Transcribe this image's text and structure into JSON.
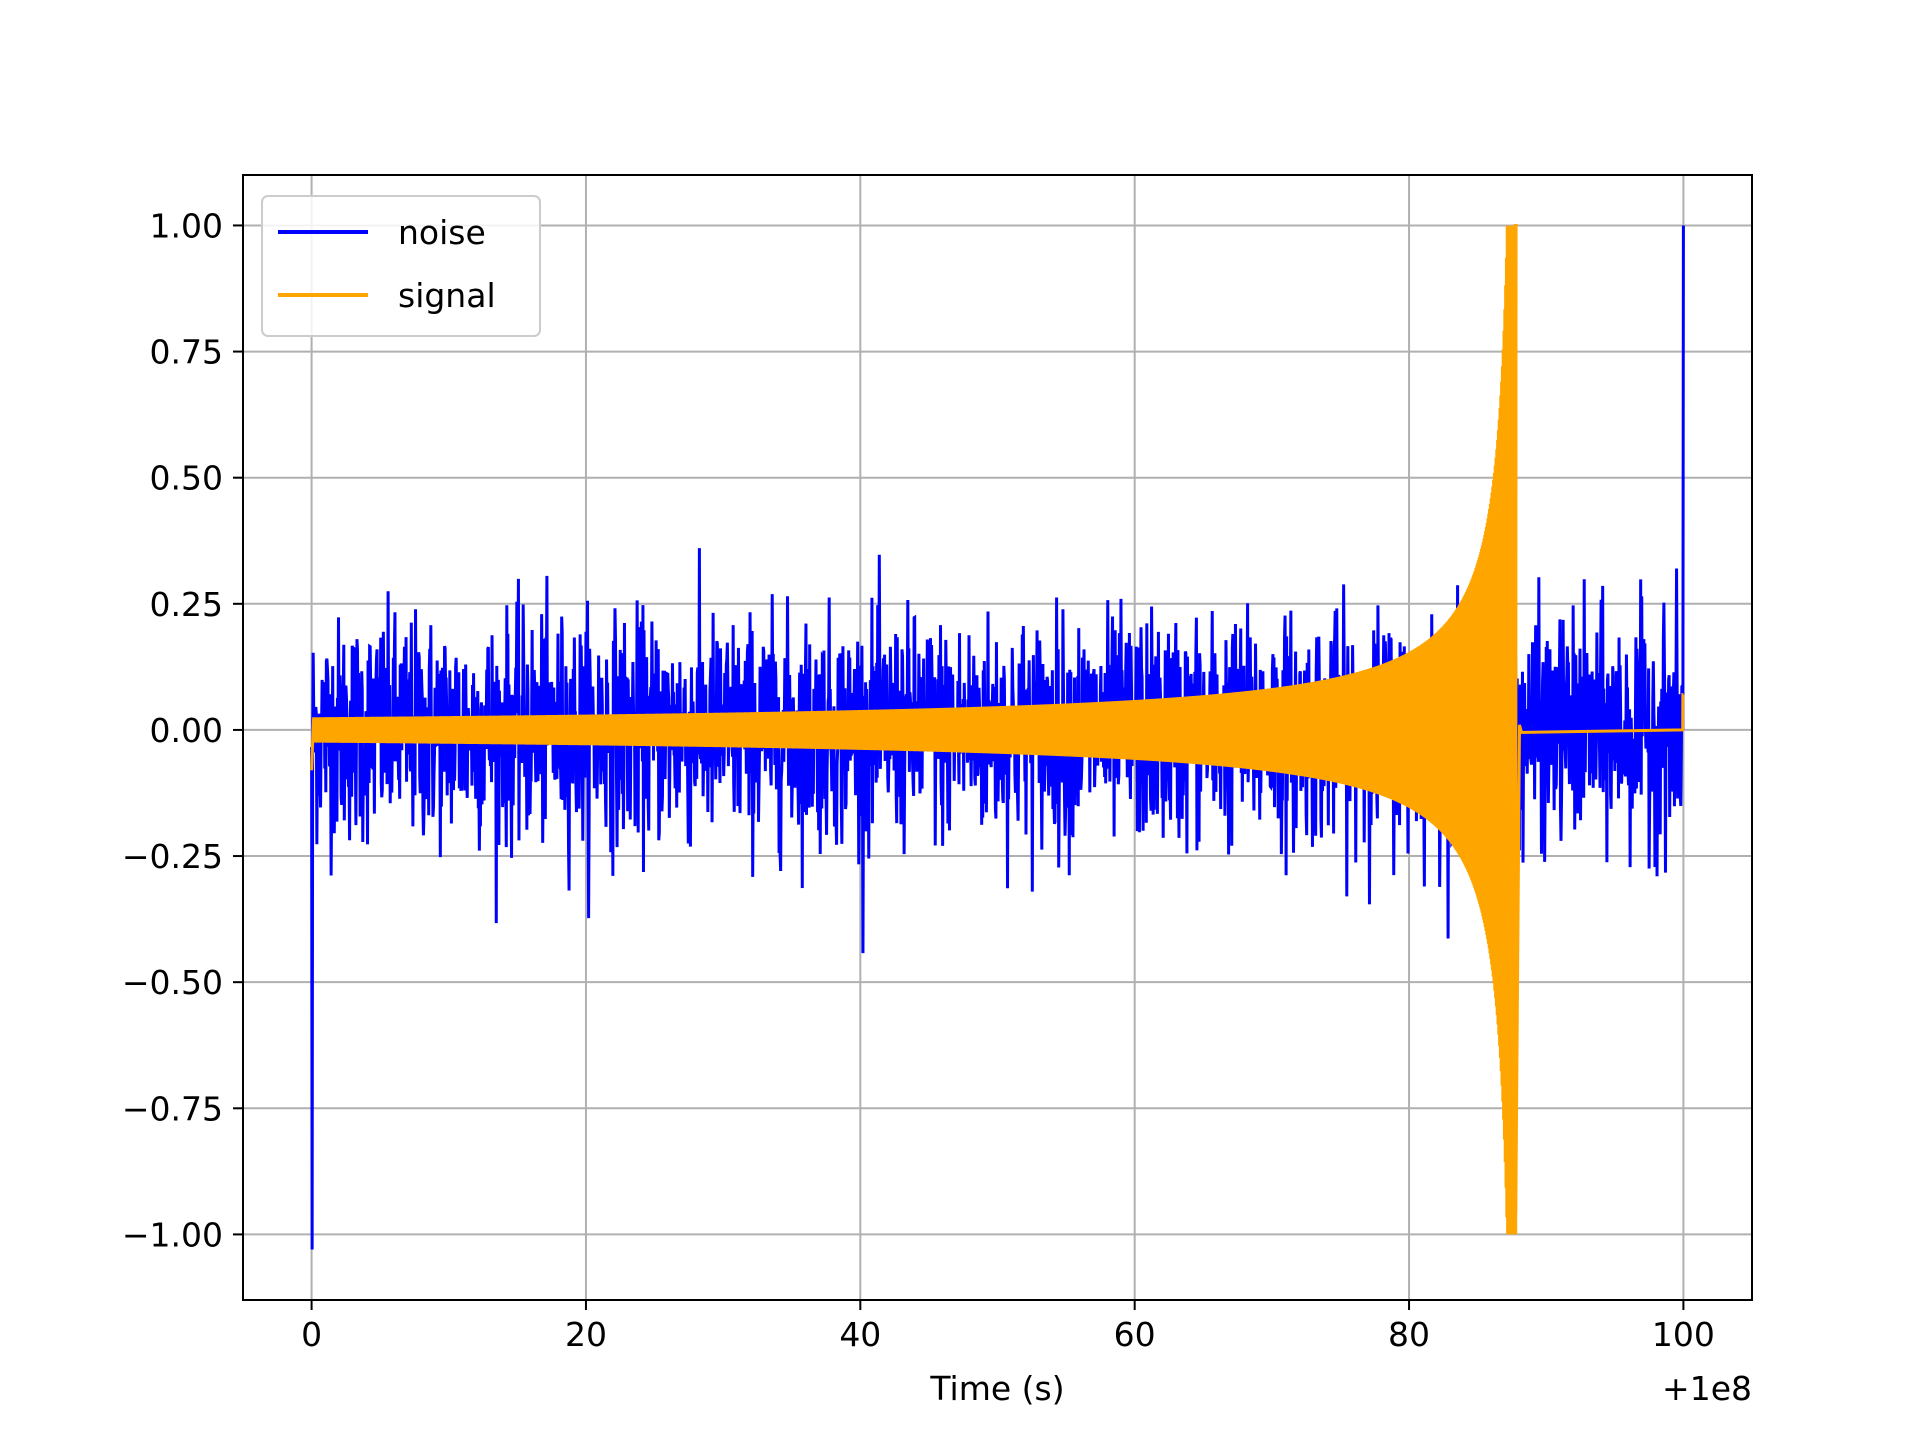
{
  "chart_data": {
    "type": "line",
    "title": "",
    "xlabel": "Time (s)",
    "ylabel": "",
    "x_offset_label": "+1e8",
    "xlim": [
      -5,
      105
    ],
    "ylim": [
      -1.13,
      1.1
    ],
    "grid": true,
    "legend_position": "top-left",
    "x_ticks": [
      0,
      20,
      40,
      60,
      80,
      100
    ],
    "x_tick_labels": [
      "0",
      "20",
      "40",
      "60",
      "80",
      "100"
    ],
    "y_ticks": [
      1.0,
      0.75,
      0.5,
      0.25,
      0.0,
      -0.25,
      -0.5,
      -0.75,
      -1.0
    ],
    "y_tick_labels": [
      "1.00",
      "0.75",
      "0.50",
      "0.25",
      "0.00",
      "−0.25",
      "−0.50",
      "−0.75",
      "−1.00"
    ],
    "series": [
      {
        "name": "noise",
        "color": "#0000ff",
        "description_values": {
          "x_range": [
            0,
            100
          ],
          "typical_amplitude": 0.33,
          "max_peak": 0.53,
          "min_trough": -0.5,
          "start_spike": -1.03,
          "end_spike": 1.0
        }
      },
      {
        "name": "signal",
        "color": "#ffa500",
        "description_values": {
          "x_range": [
            0,
            100
          ],
          "initial_envelope": 0.025,
          "peak_time": 87.8,
          "peak_max": 1.0,
          "peak_min": -0.96,
          "post_merger_value": 0.0,
          "start_value": -0.08,
          "end_value": 0.07
        }
      }
    ]
  }
}
